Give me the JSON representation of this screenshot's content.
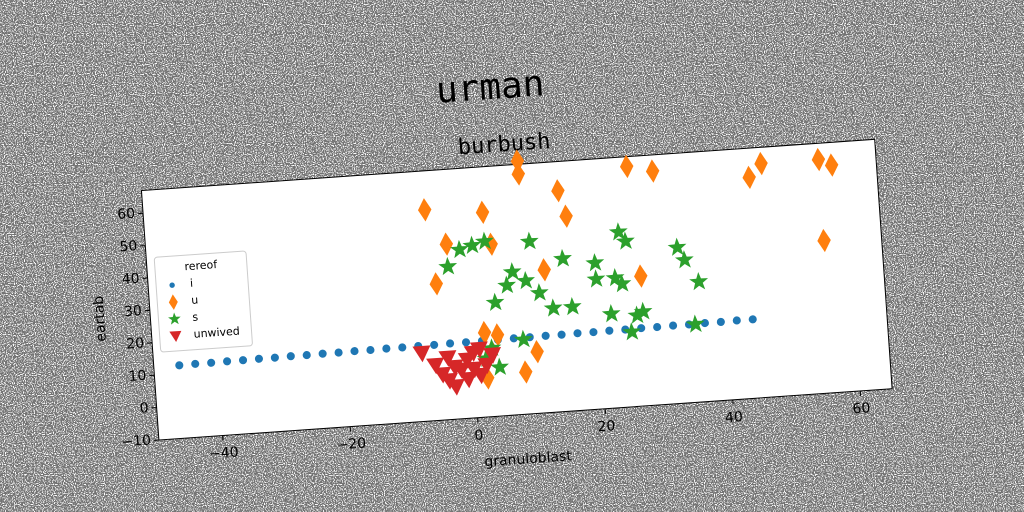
{
  "chart_data": {
    "type": "scatter",
    "title": "urman",
    "subtitle": "burbush",
    "x_label": "granuloblast",
    "y_label": "eartab",
    "xlim": [
      -50,
      65
    ],
    "ylim": [
      -10,
      67
    ],
    "xticks": [
      {
        "value": -40,
        "label": "−40"
      },
      {
        "value": -20,
        "label": "−20"
      },
      0,
      20,
      40,
      60
    ],
    "yticks": [
      {
        "value": -10,
        "label": "−10"
      },
      0,
      10,
      20,
      30,
      40,
      50,
      60
    ],
    "legend_title": "rereof",
    "legend": "center left",
    "series": [
      {
        "name": "i",
        "color": "#1f77b4",
        "marker": "circle",
        "x": [
          -46,
          -43.5,
          -41,
          -38.5,
          -36,
          -33.5,
          -31,
          -28.5,
          -26,
          -23.5,
          -21,
          -18.5,
          -16,
          -13.5,
          -11,
          -8.5,
          -6,
          -3.5,
          -1,
          1.5,
          4,
          6.5,
          9,
          11.5,
          14,
          16.5,
          19,
          21.5,
          24,
          26.5,
          29,
          31.5,
          34,
          36.5,
          39,
          41.5,
          44
        ],
        "values": [
          12.5,
          12.6,
          12.6,
          12.7,
          12.7,
          12.8,
          12.8,
          12.9,
          12.9,
          13.0,
          13.0,
          13.1,
          13.1,
          13.2,
          13.2,
          13.3,
          13.3,
          13.4,
          13.4,
          13.5,
          13.5,
          13.6,
          13.6,
          13.7,
          13.7,
          13.8,
          13.8,
          13.9,
          13.9,
          14.0,
          14.0,
          14.1,
          14.1,
          14.2,
          14.2,
          14.3,
          14.3
        ]
      },
      {
        "name": "u",
        "color": "#ff7f0e",
        "marker": "diamond",
        "x": [
          -6,
          -3,
          -5,
          3,
          4,
          2,
          4,
          2,
          9,
          9,
          8,
          10,
          15,
          16,
          12,
          26,
          30,
          27,
          47,
          45,
          56,
          58,
          56,
          3
        ],
        "values": [
          55,
          44,
          32,
          53,
          43,
          16,
          15,
          2,
          68,
          64,
          3,
          9,
          58,
          50,
          34,
          64,
          62,
          30,
          62,
          58,
          62,
          60,
          37,
          10
        ]
      },
      {
        "name": "s",
        "color": "#2ca02c",
        "marker": "star",
        "x": [
          -1,
          1,
          3,
          -3,
          4,
          6,
          7,
          10,
          11,
          8,
          15,
          13,
          16,
          20,
          20,
          22,
          23,
          24,
          25,
          25,
          26,
          27,
          24,
          33,
          34,
          36,
          35,
          3,
          2,
          9,
          4
        ],
        "values": [
          42,
          43,
          44,
          37,
          25,
          30,
          34,
          43,
          27,
          13,
          37,
          22,
          22,
          30,
          35,
          19,
          30,
          44,
          41,
          13,
          18,
          19,
          28,
          38,
          34,
          27,
          14,
          11,
          8,
          31,
          5
        ]
      },
      {
        "name": "unwived",
        "color": "#d62728",
        "marker": "triangle-down",
        "x": [
          -8,
          -6,
          -5,
          -4,
          -3,
          -2,
          -1,
          0,
          1,
          2,
          3,
          -3,
          -1,
          1,
          -4,
          0
        ],
        "values": [
          11,
          7,
          4,
          2,
          0,
          5,
          8,
          10,
          3,
          6,
          9,
          6,
          2,
          11,
          9,
          5
        ]
      }
    ]
  }
}
